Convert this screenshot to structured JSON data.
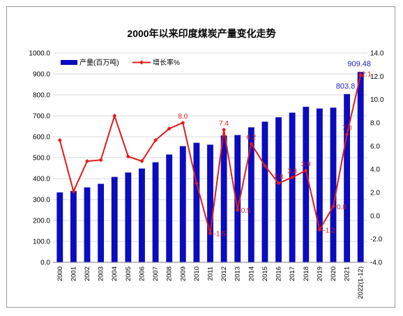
{
  "chart_data": {
    "type": "bar+line",
    "title": "2000年以来印度煤炭产量变化走势",
    "categories": [
      "2000",
      "2001",
      "2002",
      "2003",
      "2004",
      "2005",
      "2006",
      "2007",
      "2008",
      "2009",
      "2010",
      "2011",
      "2012",
      "2013",
      "2014",
      "2015",
      "2016",
      "2017",
      "2018",
      "2019",
      "2020",
      "2021",
      "2022(1-12)"
    ],
    "series": [
      {
        "name": "产量(百万吨)",
        "type": "bar",
        "axis": "left",
        "color": "#0b0bbf",
        "values": [
          334,
          341,
          358,
          375,
          408,
          429,
          448,
          478,
          515,
          555,
          571,
          562,
          606,
          608,
          645,
          672,
          693,
          715,
          743,
          735,
          739,
          803.8,
          909.48
        ],
        "labels": {
          "21": "803.8",
          "22": "909.48"
        }
      },
      {
        "name": "增长率%",
        "type": "line",
        "axis": "right",
        "color": "#e31a1a",
        "values": [
          6.5,
          2.1,
          4.7,
          4.8,
          8.6,
          5.1,
          4.7,
          6.5,
          7.5,
          8.0,
          2.8,
          -1.5,
          7.4,
          0.5,
          6.2,
          4.3,
          2.8,
          3.3,
          3.9,
          -1.2,
          0.8,
          7.0,
          12.1
        ],
        "labels": {
          "9": "8.0",
          "11": "-1.5",
          "12": "7.4",
          "13": "0.5",
          "14": "6.2",
          "16": "2.8",
          "17": "3.3",
          "18": "3.9",
          "19": "-1.2",
          "20": "0.8",
          "21": "7.0",
          "22": "12.1"
        }
      }
    ],
    "y_left": {
      "min": 0,
      "max": 1000,
      "step": 100,
      "ticks": [
        "0.0",
        "100.0",
        "200.0",
        "300.0",
        "400.0",
        "500.0",
        "600.0",
        "700.0",
        "800.0",
        "900.0",
        "1000.0"
      ]
    },
    "y_right": {
      "min": -4,
      "max": 14,
      "step": 2,
      "ticks": [
        "-4.0",
        "-2.0",
        "0.0",
        "2.0",
        "4.0",
        "6.0",
        "8.0",
        "10.0",
        "12.0",
        "14.0"
      ]
    },
    "grid": "horizontal",
    "legend": "top-left"
  }
}
